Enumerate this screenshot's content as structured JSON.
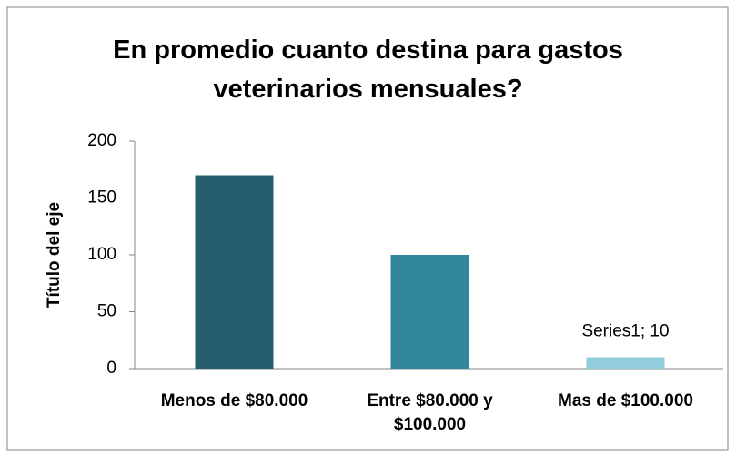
{
  "chart_data": {
    "type": "bar",
    "title": "En promedio cuanto destina para gastos veterinarios mensuales?",
    "y_label": "Título del eje",
    "categories": [
      "Menos de $80.000",
      "Entre $80.000 y $100.000",
      "Mas de $100.000"
    ],
    "values": [
      170,
      100,
      10
    ],
    "value_labels": [
      null,
      null,
      "Series1; 10"
    ],
    "colors": [
      "#255e6d",
      "#31869b",
      "#92cddc"
    ],
    "ylim": [
      0,
      200
    ],
    "yticks": [
      0,
      50,
      100,
      150,
      200
    ],
    "grid": false
  }
}
